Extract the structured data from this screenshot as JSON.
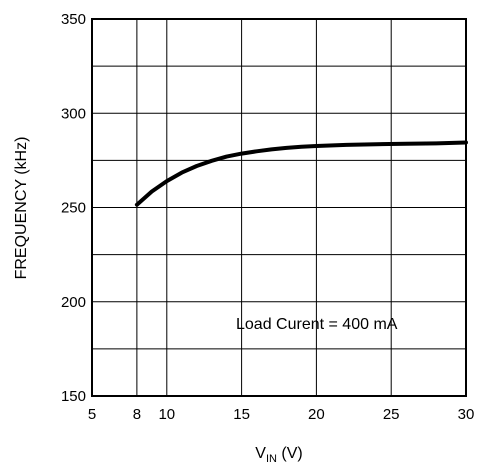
{
  "chart_data": {
    "type": "line",
    "xlabel_main": "V",
    "xlabel_sub": "IN",
    "xlabel_unit": " (V)",
    "ylabel": "FREQUENCY (kHz)",
    "xlim": [
      5,
      30
    ],
    "ylim": [
      150,
      350
    ],
    "x_ticks": [
      5,
      8,
      10,
      15,
      20,
      25,
      30
    ],
    "y_ticks": [
      150,
      200,
      250,
      300,
      350
    ],
    "grid_x": [
      8,
      10,
      15,
      20,
      25
    ],
    "grid_y": [
      175,
      200,
      225,
      250,
      275,
      300,
      325
    ],
    "grid": true,
    "annotation": "Load Curent = 400 mA",
    "series": [
      {
        "x": [
          8,
          9,
          10,
          11,
          12,
          13,
          14,
          15,
          16,
          17,
          18,
          19,
          20,
          22,
          24,
          26,
          28,
          30
        ],
        "values": [
          251.5,
          258.5,
          264,
          268.5,
          272,
          274.8,
          277,
          278.6,
          279.8,
          280.8,
          281.6,
          282.2,
          282.6,
          283.2,
          283.6,
          283.8,
          284.0,
          284.5
        ]
      }
    ]
  }
}
